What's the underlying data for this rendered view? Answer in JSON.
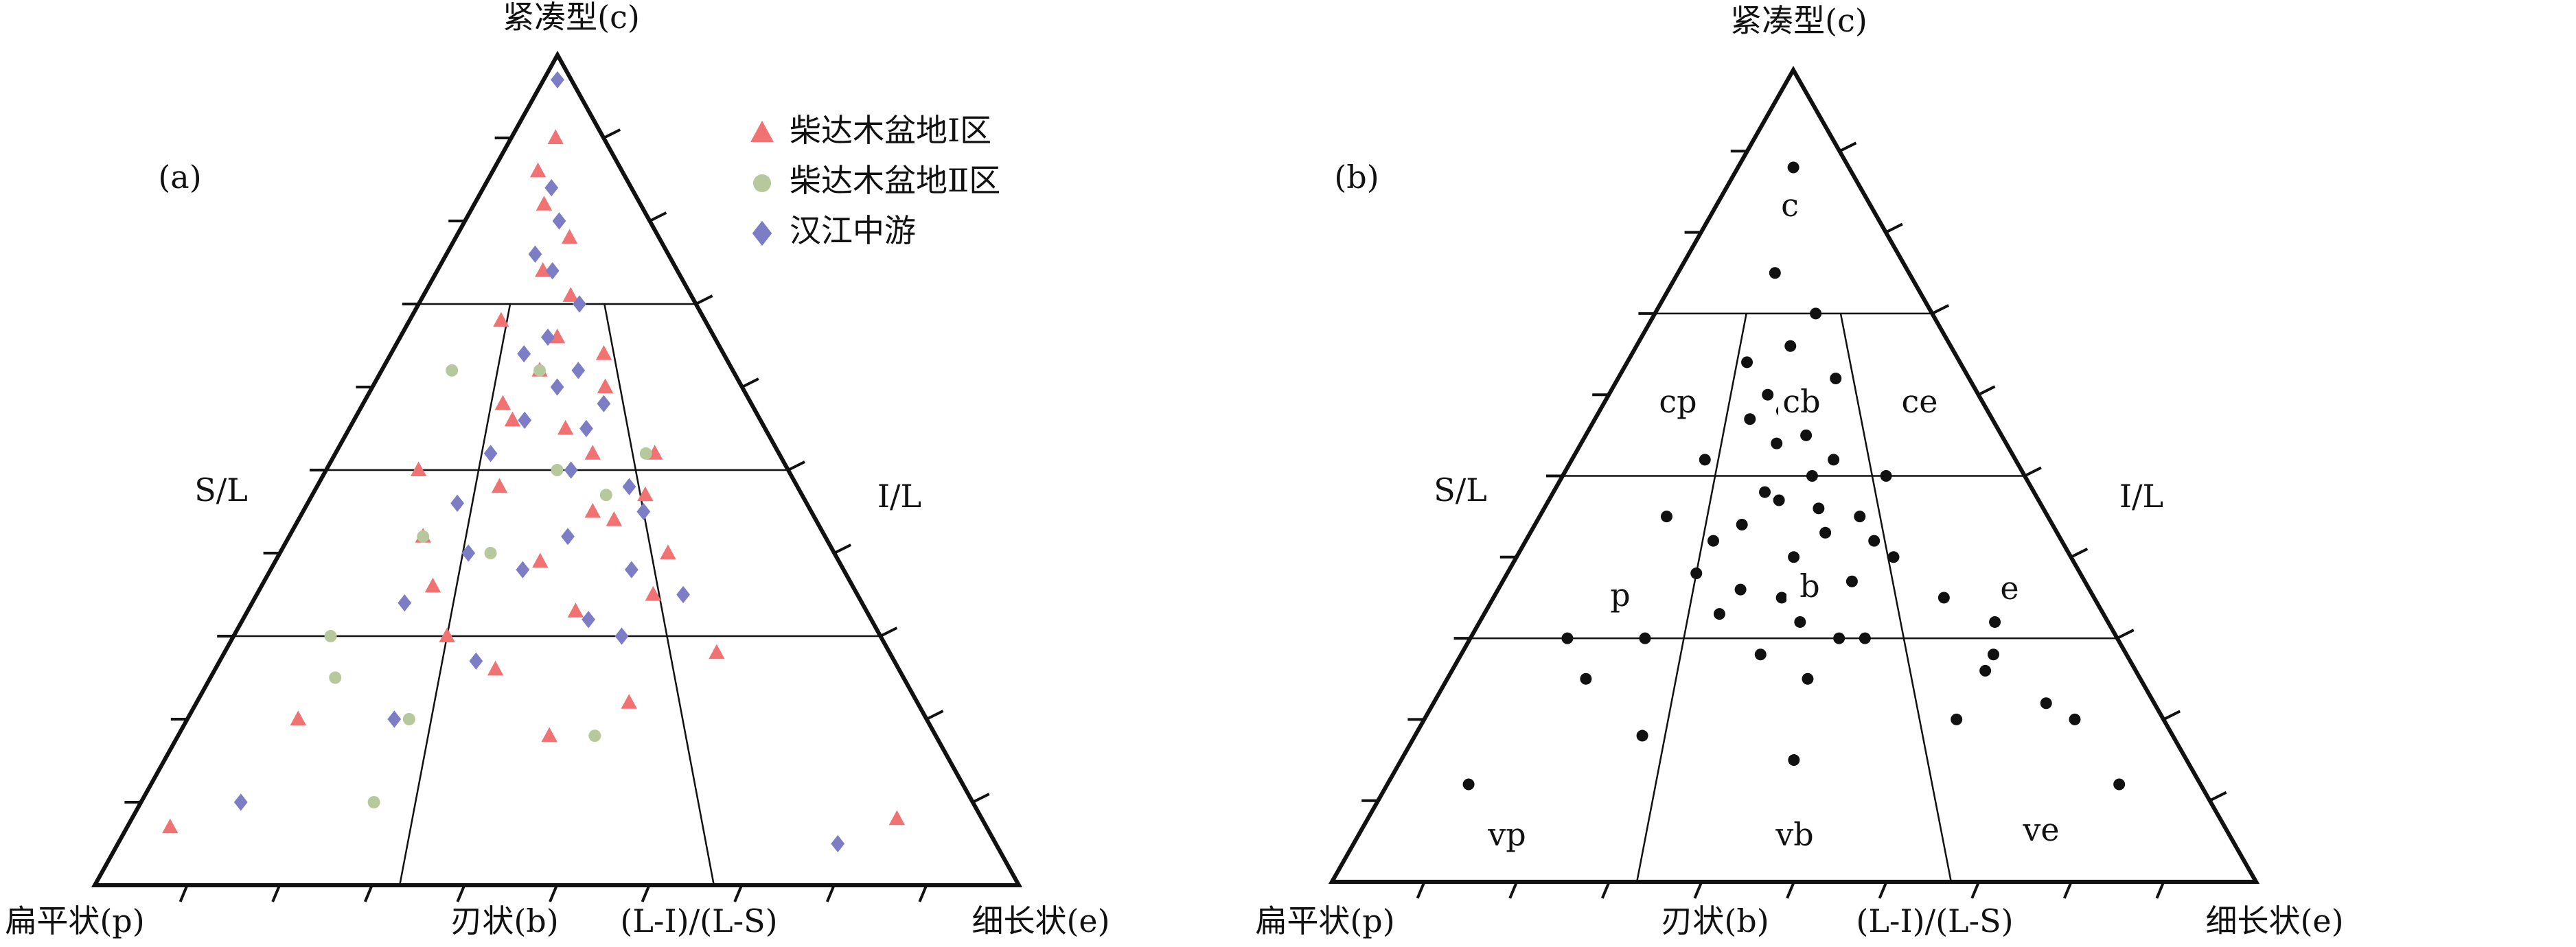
{
  "chart_data": [
    {
      "type": "ternary",
      "panel_label": "(a)",
      "apex_label": "紧凑型(c)",
      "left_label": "扁平状(p)",
      "bottom_middle_label": "刃状(b)",
      "bottom_axis_label": "(L-I)/(L-S)",
      "right_label": "细长状(e)",
      "left_side_label": "S/L",
      "right_side_label": "I/L",
      "ticks": [
        0.1,
        0.2,
        0.3,
        0.4,
        0.5,
        0.6,
        0.7,
        0.8,
        0.9
      ],
      "s_l_divisions": [
        0.3,
        0.5,
        0.7
      ],
      "ratio_divisions": [
        0.33,
        0.67
      ],
      "legend": "upper right",
      "series": [
        {
          "name": "柴达木盆地Ⅰ区",
          "color": "#f07272",
          "marker": "triangle",
          "x": [
            0.45,
            0.52,
            0.38,
            0.61,
            0.29,
            0.55,
            0.7,
            0.42,
            0.33,
            0.58,
            0.66,
            0.48,
            0.25,
            0.5,
            0.74,
            0.36,
            0.63,
            0.41,
            0.56,
            0.2,
            0.47,
            0.68,
            0.31,
            0.53,
            0.44,
            0.6,
            0.39,
            0.72,
            0.15,
            0.9,
            0.05,
            0.57,
            0.35,
            0.49,
            0.64
          ],
          "y": [
            0.62,
            0.55,
            0.48,
            0.44,
            0.36,
            0.71,
            0.4,
            0.82,
            0.3,
            0.52,
            0.35,
            0.9,
            0.42,
            0.66,
            0.28,
            0.58,
            0.6,
            0.26,
            0.78,
            0.5,
            0.39,
            0.47,
            0.68,
            0.33,
            0.74,
            0.22,
            0.56,
            0.52,
            0.2,
            0.08,
            0.07,
            0.45,
            0.86,
            0.18,
            0.64
          ]
        },
        {
          "name": "柴达木盆地Ⅱ区",
          "color": "#b7c99c",
          "marker": "circle",
          "x": [
            0.2,
            0.15,
            0.3,
            0.55,
            0.45,
            0.28,
            0.6,
            0.38,
            0.18,
            0.7,
            0.25,
            0.5
          ],
          "y": [
            0.62,
            0.3,
            0.2,
            0.18,
            0.62,
            0.1,
            0.47,
            0.4,
            0.25,
            0.52,
            0.42,
            0.5
          ]
        },
        {
          "name": "汉江中游",
          "color": "#7d7dc6",
          "marker": "diamond",
          "x": [
            0.5,
            0.46,
            0.58,
            0.4,
            0.62,
            0.35,
            0.53,
            0.67,
            0.44,
            0.3,
            0.56,
            0.48,
            0.71,
            0.38,
            0.6,
            0.52,
            0.25,
            0.42,
            0.65,
            0.5,
            0.34,
            0.57,
            0.47,
            0.82,
            0.12,
            0.55,
            0.4,
            0.63,
            0.28,
            0.51
          ],
          "y": [
            0.97,
            0.84,
            0.7,
            0.64,
            0.58,
            0.52,
            0.5,
            0.45,
            0.38,
            0.46,
            0.62,
            0.74,
            0.35,
            0.27,
            0.3,
            0.42,
            0.34,
            0.56,
            0.48,
            0.6,
            0.4,
            0.55,
            0.66,
            0.05,
            0.1,
            0.32,
            0.76,
            0.38,
            0.2,
            0.8
          ]
        }
      ]
    },
    {
      "type": "ternary",
      "panel_label": "(b)",
      "apex_label": "紧凑型(c)",
      "left_label": "扁平状(p)",
      "bottom_middle_label": "刃状(b)",
      "bottom_axis_label": "(L-I)/(L-S)",
      "right_label": "细长状(e)",
      "left_side_label": "S/L",
      "right_side_label": "I/L",
      "ticks": [
        0.1,
        0.2,
        0.3,
        0.4,
        0.5,
        0.6,
        0.7,
        0.8,
        0.9
      ],
      "s_l_divisions": [
        0.3,
        0.5,
        0.7
      ],
      "ratio_divisions": [
        0.33,
        0.67
      ],
      "region_labels": [
        "c",
        "cp",
        "cb",
        "ce",
        "p",
        "b",
        "e",
        "vp",
        "vb",
        "ve"
      ],
      "series": [
        {
          "color": "#111111",
          "marker": "circle",
          "x": [
            0.5,
            0.42,
            0.58,
            0.36,
            0.62,
            0.47,
            0.53,
            0.3,
            0.7,
            0.44,
            0.55,
            0.4,
            0.65,
            0.5,
            0.33,
            0.6,
            0.48,
            0.38,
            0.57,
            0.45,
            0.52,
            0.27,
            0.75,
            0.8,
            0.85,
            0.82,
            0.78,
            0.88,
            0.2,
            0.15,
            0.25,
            0.43,
            0.59,
            0.49,
            0.35,
            0.63,
            0.54,
            0.46,
            0.68,
            0.41,
            0.51,
            0.56,
            0.39,
            0.61,
            0.47,
            0.9,
            0.1,
            0.3,
            0.72,
            0.5
          ],
          "y": [
            0.88,
            0.75,
            0.7,
            0.64,
            0.62,
            0.58,
            0.55,
            0.52,
            0.5,
            0.48,
            0.46,
            0.44,
            0.42,
            0.4,
            0.38,
            0.37,
            0.35,
            0.33,
            0.3,
            0.28,
            0.25,
            0.3,
            0.35,
            0.28,
            0.22,
            0.32,
            0.26,
            0.2,
            0.25,
            0.3,
            0.45,
            0.6,
            0.52,
            0.66,
            0.42,
            0.45,
            0.5,
            0.54,
            0.4,
            0.36,
            0.32,
            0.43,
            0.57,
            0.3,
            0.47,
            0.12,
            0.12,
            0.18,
            0.2,
            0.15
          ]
        }
      ]
    }
  ]
}
